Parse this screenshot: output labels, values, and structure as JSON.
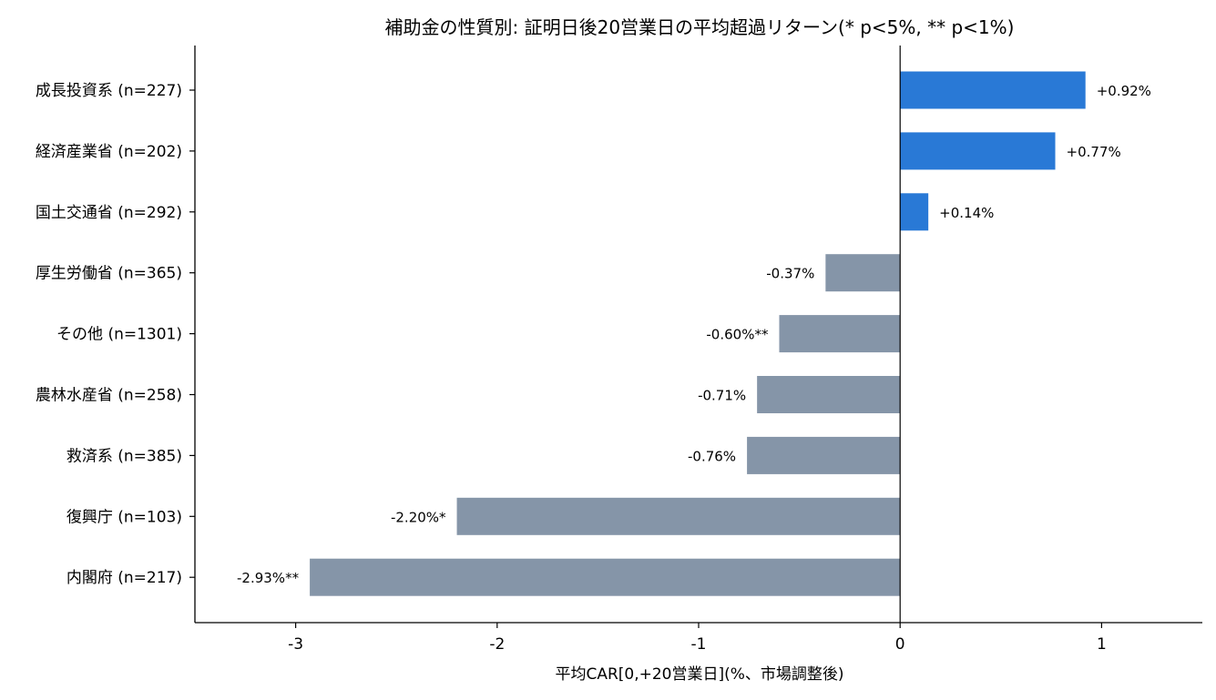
{
  "chart_data": {
    "type": "bar",
    "orientation": "horizontal",
    "title": "補助金の性質別: 証明日後20営業日の平均超過リターン(* p<5%, ** p<1%)",
    "xlabel": "平均CAR[0,+20営業日](%、市場調整後)",
    "ylabel": "",
    "xlim": [
      -3.5,
      1.5
    ],
    "xticks": [
      -3,
      -2,
      -1,
      0,
      1
    ],
    "xtick_labels": [
      "-3",
      "-2",
      "-1",
      "0",
      "1"
    ],
    "categories": [
      "成長投資系 (n=227)",
      "経済産業省 (n=202)",
      "国土交通省 (n=292)",
      "厚生労働省 (n=365)",
      "その他 (n=1301)",
      "農林水産省 (n=258)",
      "救済系 (n=385)",
      "復興庁 (n=103)",
      "内閣府 (n=217)"
    ],
    "values": [
      0.92,
      0.77,
      0.14,
      -0.37,
      -0.6,
      -0.71,
      -0.76,
      -2.2,
      -2.93
    ],
    "data_labels": [
      "+0.92%",
      "+0.77%",
      "+0.14%",
      "-0.37%",
      "-0.60%**",
      "-0.71%",
      "-0.76%",
      "-2.20%*",
      "-2.93%**"
    ],
    "colors": {
      "positive": "#2979d6",
      "negative": "#8595a8",
      "axis": "#000000"
    },
    "grid": false,
    "legend": "none"
  }
}
